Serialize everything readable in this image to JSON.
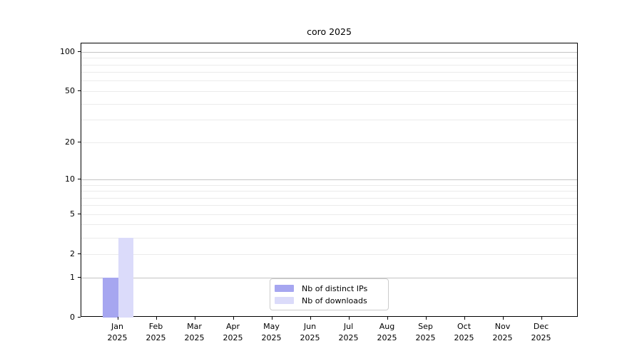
{
  "chart_data": {
    "type": "bar",
    "title": "coro 2025",
    "categories": [
      "Jan",
      "Feb",
      "Mar",
      "Apr",
      "May",
      "Jun",
      "Jul",
      "Aug",
      "Sep",
      "Oct",
      "Nov",
      "Dec"
    ],
    "x_year": "2025",
    "series": [
      {
        "name": "Nb of distinct IPs",
        "color": "#a6a6f0",
        "values": [
          1,
          0,
          0,
          0,
          0,
          0,
          0,
          0,
          0,
          0,
          0,
          0
        ]
      },
      {
        "name": "Nb of downloads",
        "color": "#dbdbfa",
        "values": [
          3,
          0,
          0,
          0,
          0,
          0,
          0,
          0,
          0,
          0,
          0,
          0
        ]
      }
    ],
    "y_ticks": [
      0,
      1,
      2,
      5,
      10,
      20,
      50,
      100
    ],
    "yscale": "log1p",
    "ylim": [
      0,
      117
    ],
    "grid": {
      "orientation": "horizontal",
      "major_at": [
        1,
        10,
        100
      ],
      "minor_at": [
        2,
        3,
        4,
        5,
        6,
        7,
        8,
        9,
        20,
        30,
        40,
        50,
        60,
        70,
        80,
        90
      ]
    },
    "legend_position": "lower center"
  }
}
